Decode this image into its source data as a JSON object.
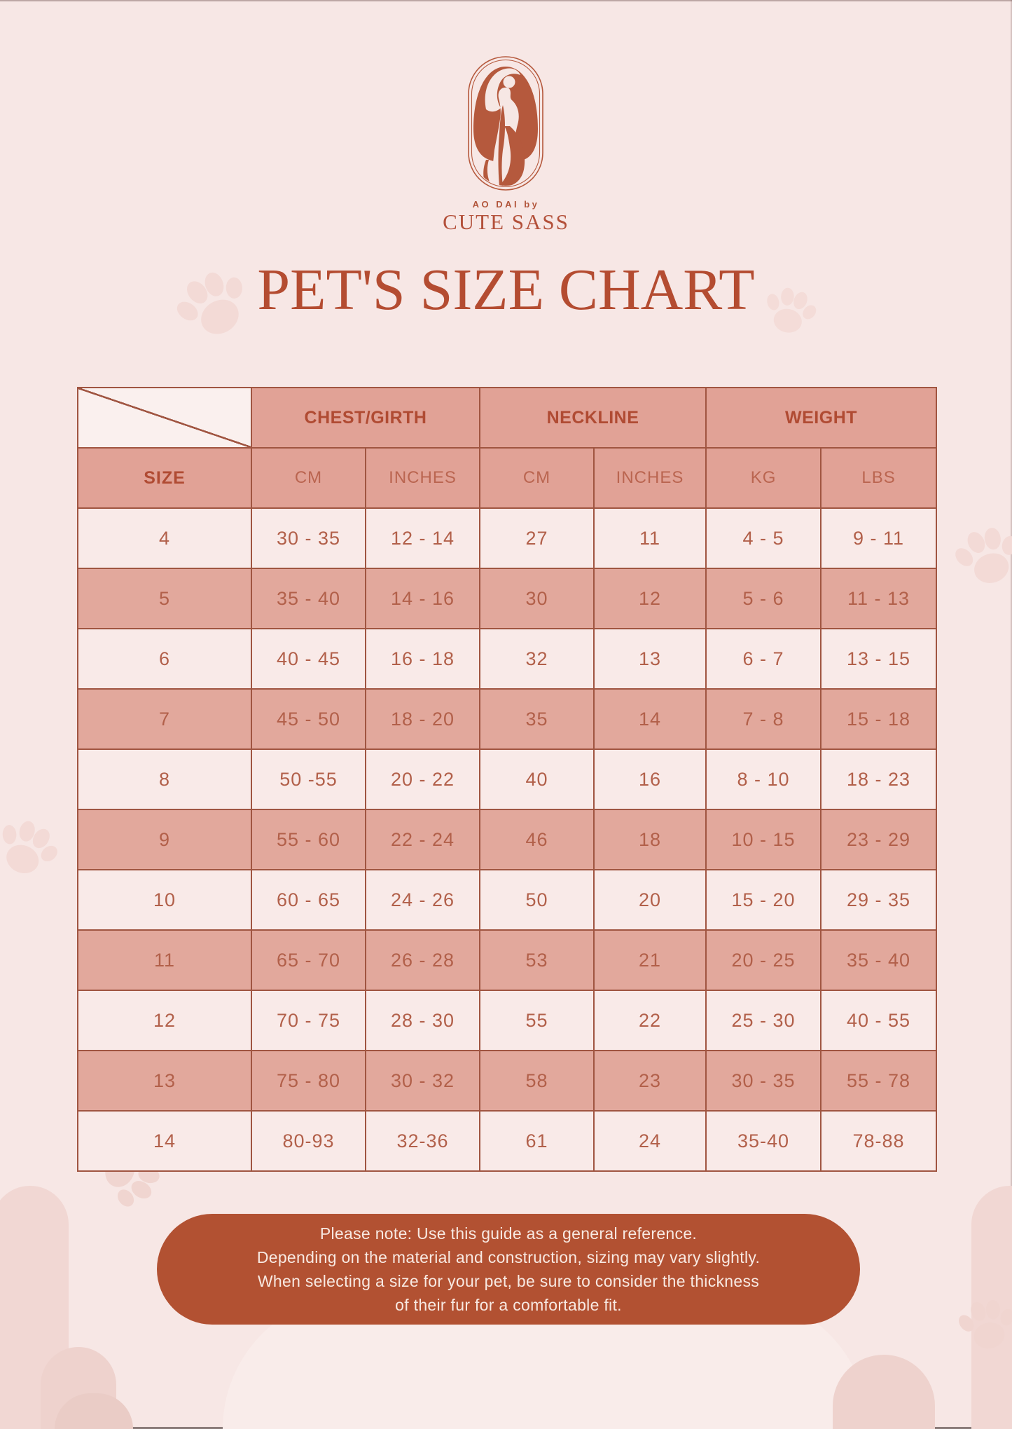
{
  "brand": {
    "tagline": "AO DAI by",
    "name": "CUTE SASS"
  },
  "title": "PET'S SIZE CHART",
  "table": {
    "column_groups": [
      "CHEST/GIRTH",
      "NECKLINE",
      "WEIGHT"
    ],
    "sub_columns": [
      "SIZE",
      "CM",
      "INCHES",
      "CM",
      "INCHES",
      "KG",
      "LBS"
    ],
    "rows": [
      [
        "4",
        "30 - 35",
        "12 - 14",
        "27",
        "11",
        "4 - 5",
        "9 - 11"
      ],
      [
        "5",
        "35 - 40",
        "14 - 16",
        "30",
        "12",
        "5 - 6",
        "11 - 13"
      ],
      [
        "6",
        "40 - 45",
        "16 - 18",
        "32",
        "13",
        "6 - 7",
        "13 - 15"
      ],
      [
        "7",
        "45 - 50",
        "18 - 20",
        "35",
        "14",
        "7 - 8",
        "15 - 18"
      ],
      [
        "8",
        "50 -55",
        "20 - 22",
        "40",
        "16",
        "8 - 10",
        "18 - 23"
      ],
      [
        "9",
        "55 - 60",
        "22 - 24",
        "46",
        "18",
        "10 - 15",
        "23 - 29"
      ],
      [
        "10",
        "60 - 65",
        "24 - 26",
        "50",
        "20",
        "15 - 20",
        "29 - 35"
      ],
      [
        "11",
        "65 - 70",
        "26 - 28",
        "53",
        "21",
        "20 - 25",
        "35 - 40"
      ],
      [
        "12",
        "70 - 75",
        "28 - 30",
        "55",
        "22",
        "25 - 30",
        "40 - 55"
      ],
      [
        "13",
        "75 - 80",
        "30 - 32",
        "58",
        "23",
        "30 - 35",
        "55 - 78"
      ],
      [
        "14",
        "80-93",
        "32-36",
        "61",
        "24",
        "35-40",
        "78-88"
      ]
    ]
  },
  "note": {
    "lines": [
      "Please note: Use this guide as a general reference.",
      "Depending on the material and construction, sizing may vary slightly.",
      "When selecting a size for your pet, be sure to consider the thickness",
      "of their fur for a comfortable fit."
    ]
  },
  "colors": {
    "page_background": "#f7e7e5",
    "table_header": "#e1a296",
    "row_salmon": "#e2a89c",
    "row_light": "#f9eae8",
    "table_border": "#a05541",
    "accent_text": "#b44c31",
    "data_text": "#b2604a",
    "note_background": "#b25132",
    "note_text": "#f8e9e2",
    "decor_pink": "#f3dad6"
  }
}
